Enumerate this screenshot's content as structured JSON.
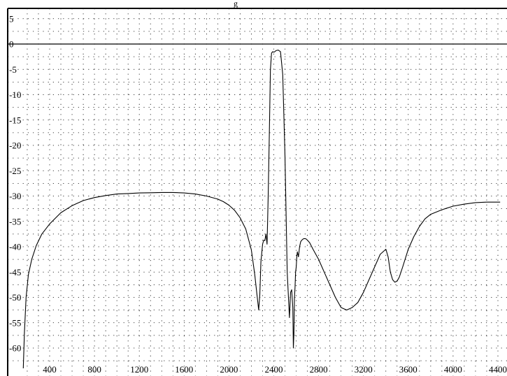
{
  "chart_data": {
    "type": "line",
    "title": "",
    "title_fragment": "g",
    "xlabel": "",
    "ylabel": "",
    "xlim": [
      150,
      4420
    ],
    "ylim": [
      -64,
      7
    ],
    "grid": true,
    "grid_style": "dotted",
    "zero_line": true,
    "x_ticks": [
      400,
      800,
      1200,
      1600,
      2000,
      2400,
      2800,
      3200,
      3600,
      4000,
      4400
    ],
    "x_tick_labels": [
      "400",
      "800",
      "1200",
      "1600",
      "2000",
      "2400",
      "2800",
      "3200",
      "3600",
      "4000",
      "4400"
    ],
    "y_ticks": [
      5,
      0,
      -5,
      -10,
      -15,
      -20,
      -25,
      -30,
      -35,
      -40,
      -45,
      -50,
      -55,
      -60
    ],
    "y_tick_labels": [
      "5",
      "0",
      "-5",
      "-10",
      "-15",
      "-20",
      "-25",
      "-30",
      "-35",
      "-40",
      "-45",
      "-50",
      "-55",
      "-60"
    ],
    "x_minor_grid_step": 100,
    "y_minor_grid_step": 2.5,
    "colors": {
      "line": "#000000",
      "grid": "#000000",
      "background": "#ffffff"
    },
    "series": [
      {
        "x": [
          165,
          175,
          190,
          210,
          240,
          280,
          330,
          400,
          500,
          600,
          700,
          800,
          900,
          1000,
          1100,
          1200,
          1300,
          1400,
          1500,
          1600,
          1700,
          1800,
          1900,
          1950,
          2000,
          2050,
          2100,
          2150,
          2200,
          2230,
          2250,
          2265,
          2275,
          2285,
          2300,
          2310,
          2320,
          2330,
          2340,
          2350,
          2360,
          2370,
          2380,
          2390,
          2400,
          2410,
          2420,
          2440,
          2460,
          2480,
          2500,
          2520,
          2540,
          2550,
          2560,
          2570,
          2575,
          2580,
          2585,
          2590,
          2595,
          2600,
          2605,
          2610,
          2620,
          2630,
          2640,
          2650,
          2660,
          2670,
          2680,
          2690,
          2700,
          2720,
          2750,
          2800,
          2850,
          2900,
          2950,
          3000,
          3050,
          3100,
          3150,
          3200,
          3250,
          3300,
          3350,
          3400,
          3420,
          3440,
          3460,
          3480,
          3500,
          3520,
          3550,
          3600,
          3650,
          3700,
          3750,
          3800,
          3900,
          4000,
          4100,
          4200,
          4300,
          4420
        ],
        "y": [
          -64,
          -57,
          -50,
          -45.5,
          -42.5,
          -39.8,
          -37.5,
          -35.5,
          -33.3,
          -31.9,
          -30.9,
          -30.3,
          -29.9,
          -29.6,
          -29.5,
          -29.4,
          -29.35,
          -29.3,
          -29.3,
          -29.4,
          -29.6,
          -30,
          -30.6,
          -31.1,
          -31.8,
          -32.8,
          -34.3,
          -36.5,
          -40.6,
          -45.5,
          -49.5,
          -52.5,
          -49.5,
          -43,
          -39.5,
          -38.7,
          -38.8,
          -37.5,
          -39.5,
          -30,
          -18,
          -5,
          -1.8,
          -1.5,
          -1.6,
          -1.5,
          -1.3,
          -1.2,
          -1.5,
          -6,
          -22,
          -45,
          -54,
          -49,
          -48.5,
          -52,
          -60,
          -57,
          -50,
          -48,
          -45,
          -44,
          -42,
          -41,
          -42,
          -40,
          -39,
          -38.7,
          -38.5,
          -38.4,
          -38.4,
          -38.5,
          -38.7,
          -39.2,
          -40.5,
          -42.5,
          -45,
          -47.5,
          -50,
          -52,
          -52.5,
          -52,
          -51,
          -49,
          -46.5,
          -44,
          -41.5,
          -40.5,
          -42,
          -45,
          -46.5,
          -47,
          -46.8,
          -46,
          -44,
          -40.5,
          -38,
          -36,
          -34.5,
          -33.6,
          -32.7,
          -32,
          -31.6,
          -31.3,
          -31.2,
          -31.2
        ]
      }
    ]
  }
}
